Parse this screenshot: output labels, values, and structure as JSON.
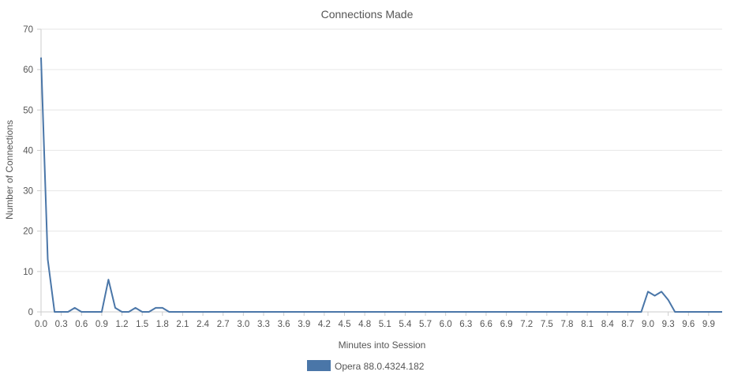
{
  "chart_data": {
    "type": "line",
    "title": "Connections Made",
    "xlabel": "Minutes into Session",
    "ylabel": "Number of Connections",
    "xlim": [
      0.0,
      10.1
    ],
    "ylim": [
      0,
      70
    ],
    "yticks": [
      0,
      10,
      20,
      30,
      40,
      50,
      60,
      70
    ],
    "xticks": [
      "0.0",
      "0.3",
      "0.6",
      "0.9",
      "1.2",
      "1.5",
      "1.8",
      "2.1",
      "2.4",
      "2.7",
      "3.0",
      "3.3",
      "3.6",
      "3.9",
      "4.2",
      "4.5",
      "4.8",
      "5.1",
      "5.4",
      "5.7",
      "6.0",
      "6.3",
      "6.6",
      "6.9",
      "7.2",
      "7.5",
      "7.8",
      "8.1",
      "8.4",
      "8.7",
      "9.0",
      "9.3",
      "9.6",
      "9.9"
    ],
    "grid": true,
    "legend_position": "bottom",
    "series": [
      {
        "name": "Opera 88.0.4324.182",
        "color": "#4a76a8",
        "x": [
          0.0,
          0.1,
          0.2,
          0.3,
          0.4,
          0.5,
          0.6,
          0.7,
          0.8,
          0.9,
          1.0,
          1.1,
          1.2,
          1.3,
          1.4,
          1.5,
          1.6,
          1.7,
          1.8,
          1.9,
          2.0,
          8.8,
          8.9,
          9.0,
          9.1,
          9.2,
          9.3,
          9.4,
          9.5,
          10.1
        ],
        "y": [
          63,
          13,
          0,
          0,
          0,
          1,
          0,
          0,
          0,
          0,
          8,
          1,
          0,
          0,
          1,
          0,
          0,
          1,
          1,
          0,
          0,
          0,
          0,
          5,
          4,
          5,
          3,
          0,
          0,
          0
        ]
      }
    ]
  }
}
